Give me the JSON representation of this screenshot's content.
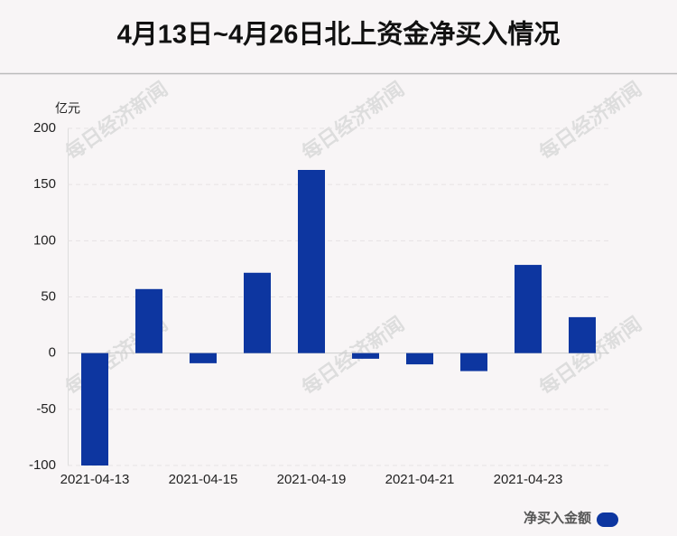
{
  "chart_data": {
    "type": "bar",
    "title": "4月13日~4月26日北上资金净买入情况",
    "y_unit": "亿元",
    "watermark": "每日经济新闻",
    "categories": [
      "2021-04-13",
      null,
      "2021-04-15",
      null,
      "2021-04-19",
      null,
      "2021-04-21",
      null,
      "2021-04-23",
      null
    ],
    "series": [
      {
        "name": "净买入金额",
        "color": "#0d36a0",
        "values": [
          -100,
          57,
          -9,
          71.5,
          163,
          -5,
          -10,
          -16,
          78.5,
          32
        ]
      }
    ],
    "ylim": [
      -100,
      200
    ],
    "yticks": [
      -100,
      -50,
      0,
      50,
      100,
      150,
      200
    ],
    "grid": true
  }
}
